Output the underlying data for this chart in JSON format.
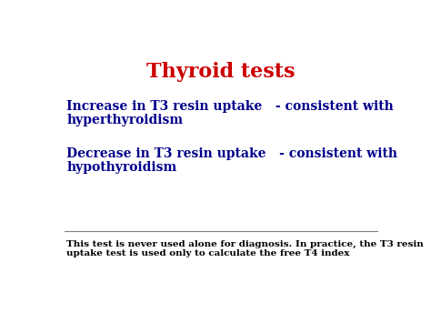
{
  "title": "Thyroid tests",
  "title_color": "#cc0000",
  "title_fontsize": 16,
  "bg_color": "#ffffff",
  "bullet1_line1": "Increase in T3 resin uptake   - consistent with",
  "bullet1_line2": "hyperthyroidism",
  "bullet2_line1": "Decrease in T3 resin uptake   - consistent with",
  "bullet2_line2": "hypothyroidism",
  "bullet_color": "#00008b",
  "bullet_fontsize": 10,
  "footer_line1": "This test is never used alone for diagnosis. In practice, the T3 resin",
  "footer_line2": "uptake test is used only to calculate the free T4 index",
  "footer_color": "#000000",
  "footer_fontsize": 7.5,
  "separator_color": "#808080"
}
